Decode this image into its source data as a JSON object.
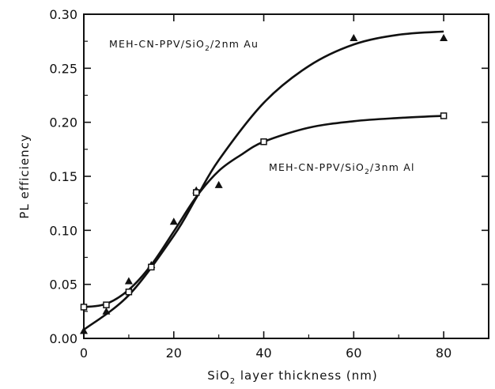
{
  "chart_data": {
    "type": "scatter",
    "xlabel": {
      "pre": "SiO",
      "sub": "2",
      "post": " layer thickness (nm)"
    },
    "ylabel": "PL efficiency",
    "xlim": [
      0,
      90
    ],
    "ylim": [
      0,
      0.3
    ],
    "xticks": [
      0,
      20,
      40,
      60,
      80
    ],
    "xtick_labels": [
      "0",
      "20",
      "40",
      "60",
      "80"
    ],
    "yticks": [
      0,
      0.05,
      0.1,
      0.15,
      0.2,
      0.25,
      0.3
    ],
    "ytick_labels": [
      "0.00",
      "0.05",
      "0.10",
      "0.15",
      "0.20",
      "0.25",
      "0.30"
    ],
    "grid": false,
    "series": [
      {
        "name": "MEH-CN-PPV/SiO2/2nm Au",
        "label_parts": {
          "pre": "MEH-CN-PPV/SiO",
          "sub": "2",
          "post": "/2nm Au"
        },
        "marker": "triangle",
        "color": "#111111",
        "x": [
          0,
          5,
          10,
          15,
          20,
          25,
          30,
          60,
          80
        ],
        "y": [
          0.007,
          0.025,
          0.053,
          0.068,
          0.108,
          0.137,
          0.142,
          0.278,
          0.278
        ],
        "fit_x": [
          0,
          10,
          20,
          25,
          30,
          40,
          50,
          60,
          70,
          80
        ],
        "fit_y": [
          0.008,
          0.04,
          0.095,
          0.13,
          0.165,
          0.218,
          0.252,
          0.272,
          0.281,
          0.284
        ]
      },
      {
        "name": "MEH-CN-PPV/SiO2/3nm Al",
        "label_parts": {
          "pre": "MEH-CN-PPV/SiO",
          "sub": "2",
          "post": "/3nm Al"
        },
        "marker": "square",
        "color": "#111111",
        "x": [
          0,
          5,
          10,
          15,
          25,
          40,
          80
        ],
        "y": [
          0.029,
          0.031,
          0.043,
          0.066,
          0.135,
          0.182,
          0.206
        ],
        "fit_x": [
          0,
          5,
          10,
          15,
          20,
          25,
          30,
          35,
          40,
          50,
          60,
          70,
          80
        ],
        "fit_y": [
          0.029,
          0.032,
          0.045,
          0.068,
          0.099,
          0.131,
          0.155,
          0.17,
          0.182,
          0.195,
          0.201,
          0.204,
          0.206
        ]
      }
    ]
  }
}
